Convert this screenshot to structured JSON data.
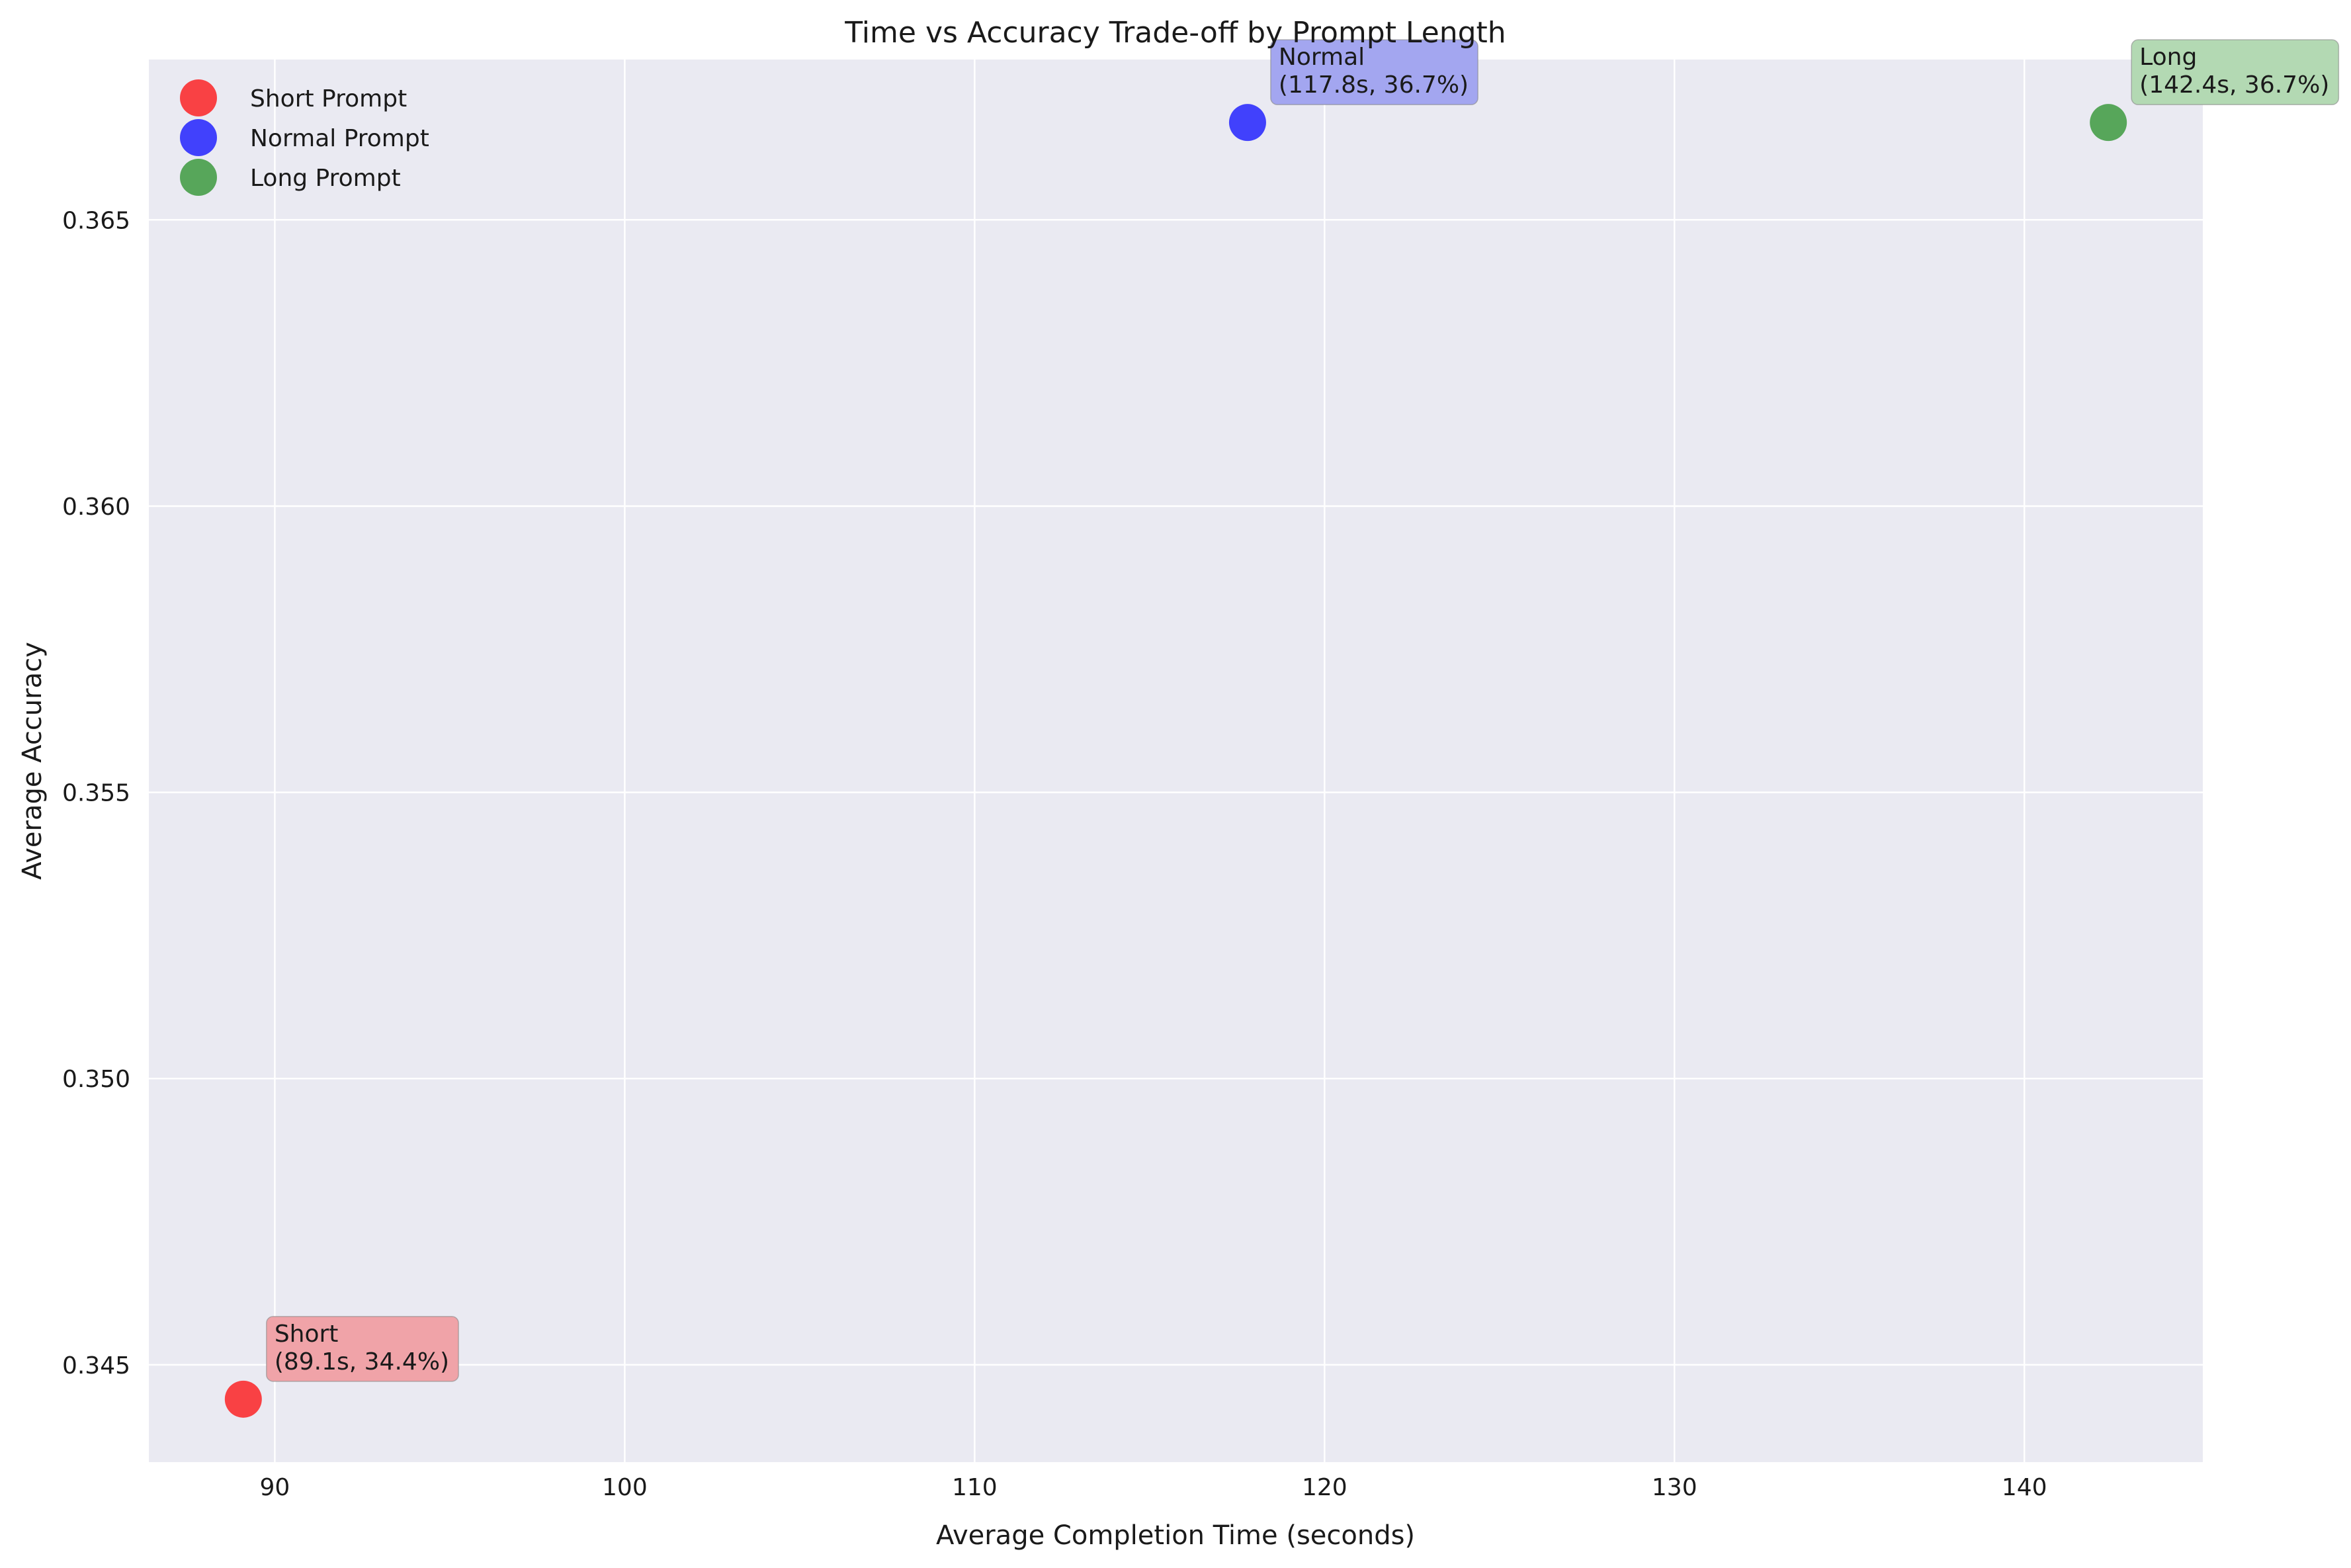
{
  "chart_data": {
    "type": "scatter",
    "title": "Time vs Accuracy Trade-off by Prompt Length",
    "xlabel": "Average Completion Time (seconds)",
    "ylabel": "Average Accuracy",
    "xlim": [
      86.4,
      145.1
    ],
    "ylim": [
      0.3433,
      0.3678
    ],
    "xticks": [
      90,
      100,
      110,
      120,
      130,
      140
    ],
    "yticks": [
      0.345,
      0.35,
      0.355,
      0.36,
      0.365
    ],
    "ytick_labels": [
      "0.345",
      "0.350",
      "0.355",
      "0.360",
      "0.365"
    ],
    "grid": true,
    "legend_position": "top-left",
    "series": [
      {
        "name": "Short Prompt",
        "color": "#ff0000",
        "box_color": "#f0a3a8",
        "x": 89.1,
        "y": 0.3444,
        "annotation_line1": "Short",
        "annotation_line2": "(89.1s, 34.4%)"
      },
      {
        "name": "Normal Prompt",
        "color": "#0000ff",
        "box_color": "#a3a6f0",
        "x": 117.8,
        "y": 0.3667,
        "annotation_line1": "Normal",
        "annotation_line2": "(117.8s, 36.7%)"
      },
      {
        "name": "Long Prompt",
        "color": "#1e8c1e",
        "box_color": "#b3d9b3",
        "x": 142.4,
        "y": 0.3667,
        "annotation_line1": "Long",
        "annotation_line2": "(142.4s, 36.7%)"
      }
    ]
  }
}
